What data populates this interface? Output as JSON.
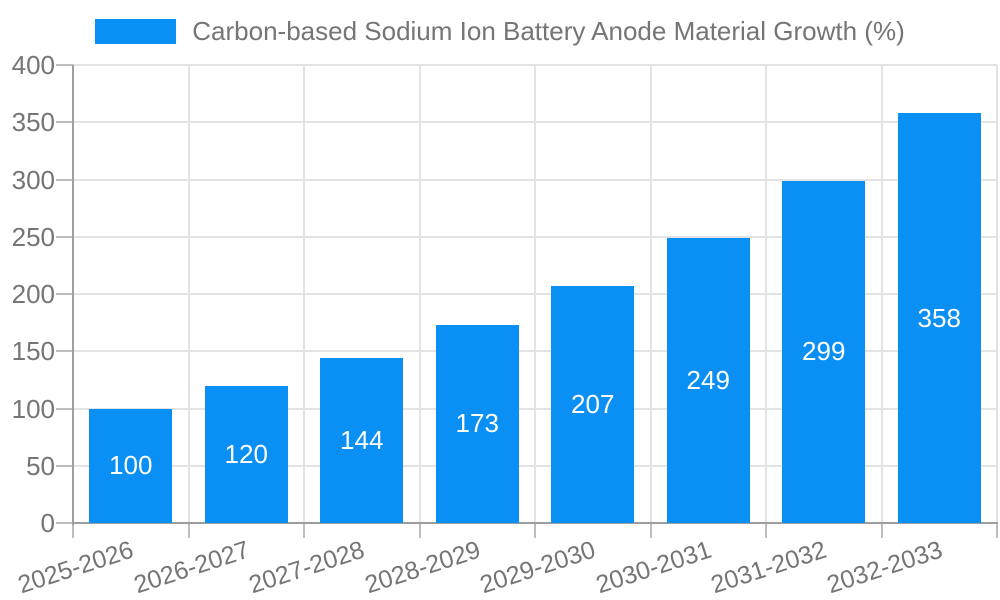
{
  "chart_data": {
    "type": "bar",
    "title": "Carbon-based Sodium Ion Battery Anode Material Growth (%)",
    "categories": [
      "2025-2026",
      "2026-2027",
      "2027-2028",
      "2028-2029",
      "2029-2030",
      "2030-2031",
      "2031-2032",
      "2032-2033"
    ],
    "values": [
      100,
      120,
      144,
      173,
      207,
      249,
      299,
      358
    ],
    "xlabel": "",
    "ylabel": "",
    "ylim": [
      0,
      400
    ],
    "yticks": [
      0,
      50,
      100,
      150,
      200,
      250,
      300,
      350,
      400
    ],
    "grid": true,
    "legend_position": "top",
    "value_label_position": "inside-center",
    "x_label_rotation_deg": -18,
    "colors": {
      "bar": "#0a8ff5",
      "value_label": "#ffffff",
      "axis_text": "#757575",
      "gridline": "#e3e3e3",
      "axis_line": "#9e9e9e",
      "tick_mark": "#bdbdbd",
      "background": "#ffffff"
    }
  }
}
